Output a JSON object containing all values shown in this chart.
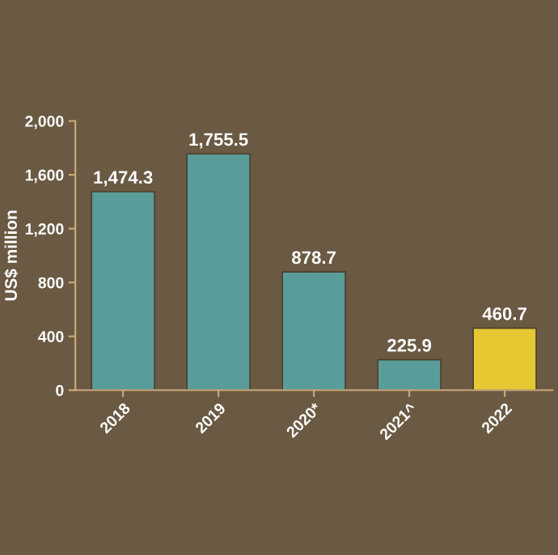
{
  "chart_data": {
    "type": "bar",
    "ylabel": "US$ million",
    "categories": [
      "2018",
      "2019",
      "2020*",
      "2021^",
      "2022"
    ],
    "values": [
      1474.3,
      1755.5,
      878.7,
      225.9,
      460.7
    ],
    "colors": [
      "#5a9c9a",
      "#5a9c9a",
      "#5a9c9a",
      "#5a9c9a",
      "#e6c832"
    ],
    "ylim": [
      0,
      2000
    ],
    "yticks": [
      0,
      {
        "value": 400,
        "label": "400"
      },
      {
        "value": 800,
        "label": "800"
      },
      {
        "value": 1200,
        "label": "1,200"
      },
      {
        "value": 1600,
        "label": "1,600"
      },
      {
        "value": 2000,
        "label": "2,000"
      }
    ],
    "data_labels": true,
    "value_labels": [
      "1,474.3",
      "1,755.5",
      "878.7",
      "225.9",
      "460.7"
    ],
    "grid": false
  }
}
